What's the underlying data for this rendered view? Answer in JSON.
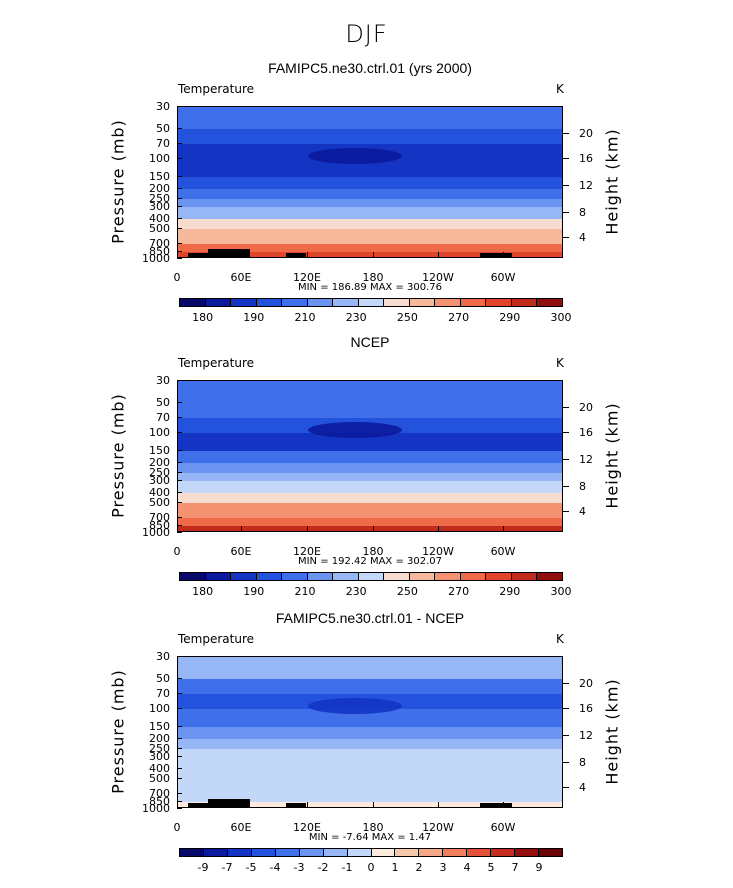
{
  "main_title": "DJF",
  "chart_data": [
    {
      "type": "heatmap",
      "title": "FAMIPC5.ne30.ctrl.01 (yrs 2000)",
      "field": "Temperature",
      "units": "K",
      "ylabel": "Pressure (mb)",
      "ylabel_right": "Height (km)",
      "yticks": [
        "30",
        "50",
        "70",
        "100",
        "150",
        "200",
        "250",
        "300",
        "400",
        "500",
        "700",
        "850",
        "1000"
      ],
      "yticks_right": [
        "20",
        "16",
        "12",
        "8",
        "4"
      ],
      "xticks": [
        "0",
        "60E",
        "120E",
        "180",
        "120W",
        "60W"
      ],
      "min_max": "MIN = 186.89   MAX = 300.76",
      "colorbar_labels": [
        "180",
        "190",
        "210",
        "230",
        "250",
        "270",
        "290",
        "300"
      ],
      "levels": [
        {
          "p": 30,
          "value": 210
        },
        {
          "p": 50,
          "value": 205
        },
        {
          "p": 70,
          "value": 200
        },
        {
          "p": 100,
          "value": 195
        },
        {
          "p": 150,
          "value": 205
        },
        {
          "p": 200,
          "value": 215
        },
        {
          "p": 250,
          "value": 225
        },
        {
          "p": 300,
          "value": 235
        },
        {
          "p": 400,
          "value": 250
        },
        {
          "p": 500,
          "value": 260
        },
        {
          "p": 700,
          "value": 275
        },
        {
          "p": 850,
          "value": 285
        },
        {
          "p": 1000,
          "value": 295
        }
      ]
    },
    {
      "type": "heatmap",
      "title": "NCEP",
      "field": "Temperature",
      "units": "K",
      "ylabel": "Pressure (mb)",
      "ylabel_right": "Height (km)",
      "yticks": [
        "30",
        "50",
        "70",
        "100",
        "150",
        "200",
        "250",
        "300",
        "400",
        "500",
        "700",
        "850",
        "1000"
      ],
      "yticks_right": [
        "20",
        "16",
        "12",
        "8",
        "4"
      ],
      "xticks": [
        "0",
        "60E",
        "120E",
        "180",
        "120W",
        "60W"
      ],
      "min_max": "MIN = 192.42   MAX = 302.07",
      "colorbar_labels": [
        "180",
        "190",
        "210",
        "230",
        "250",
        "270",
        "290",
        "300"
      ],
      "levels": [
        {
          "p": 30,
          "value": 215
        },
        {
          "p": 50,
          "value": 210
        },
        {
          "p": 70,
          "value": 205
        },
        {
          "p": 100,
          "value": 200
        },
        {
          "p": 150,
          "value": 210
        },
        {
          "p": 200,
          "value": 220
        },
        {
          "p": 250,
          "value": 228
        },
        {
          "p": 300,
          "value": 238
        },
        {
          "p": 400,
          "value": 252
        },
        {
          "p": 500,
          "value": 262
        },
        {
          "p": 700,
          "value": 278
        },
        {
          "p": 850,
          "value": 288
        },
        {
          "p": 1000,
          "value": 298
        }
      ]
    },
    {
      "type": "heatmap",
      "title": "FAMIPC5.ne30.ctrl.01 - NCEP",
      "field": "Temperature",
      "units": "K",
      "ylabel": "Pressure (mb)",
      "ylabel_right": "Height (km)",
      "yticks": [
        "30",
        "50",
        "70",
        "100",
        "150",
        "200",
        "250",
        "300",
        "400",
        "500",
        "700",
        "850",
        "1000"
      ],
      "yticks_right": [
        "20",
        "16",
        "12",
        "8",
        "4"
      ],
      "xticks": [
        "0",
        "60E",
        "120E",
        "180",
        "120W",
        "60W"
      ],
      "min_max": "MIN =   -7.64   MAX =    1.47",
      "colorbar_labels": [
        "-9",
        "-7",
        "-5",
        "-4",
        "-3",
        "-2",
        "-1",
        "0",
        "1",
        "2",
        "3",
        "4",
        "5",
        "7",
        "9"
      ],
      "levels": [
        {
          "p": 30,
          "value": -2
        },
        {
          "p": 50,
          "value": -4
        },
        {
          "p": 70,
          "value": -5
        },
        {
          "p": 100,
          "value": -4
        },
        {
          "p": 150,
          "value": -3
        },
        {
          "p": 200,
          "value": -2
        },
        {
          "p": 250,
          "value": -1
        },
        {
          "p": 300,
          "value": -1
        },
        {
          "p": 400,
          "value": -1
        },
        {
          "p": 500,
          "value": -1
        },
        {
          "p": 700,
          "value": -1
        },
        {
          "p": 850,
          "value": 0
        },
        {
          "p": 1000,
          "value": 0
        }
      ]
    }
  ],
  "colors": {
    "temp_scale": [
      "#08086b",
      "#0b1a9c",
      "#1434c4",
      "#2352dc",
      "#3f70ea",
      "#6b93f0",
      "#97b6f5",
      "#c3d7f8",
      "#f6ddcf",
      "#f7b99b",
      "#f59272",
      "#ef6a48",
      "#e0442b",
      "#c02b1c",
      "#900e0e"
    ],
    "diff_scale": [
      "#08086b",
      "#0b1a9c",
      "#1434c4",
      "#2352dc",
      "#3f70ea",
      "#6b93f0",
      "#97b6f5",
      "#c3d7f8",
      "#fbeadd",
      "#f7c9ac",
      "#f5a684",
      "#f07d5b",
      "#e35136",
      "#c42d1f",
      "#940f0f",
      "#6a0505"
    ]
  }
}
